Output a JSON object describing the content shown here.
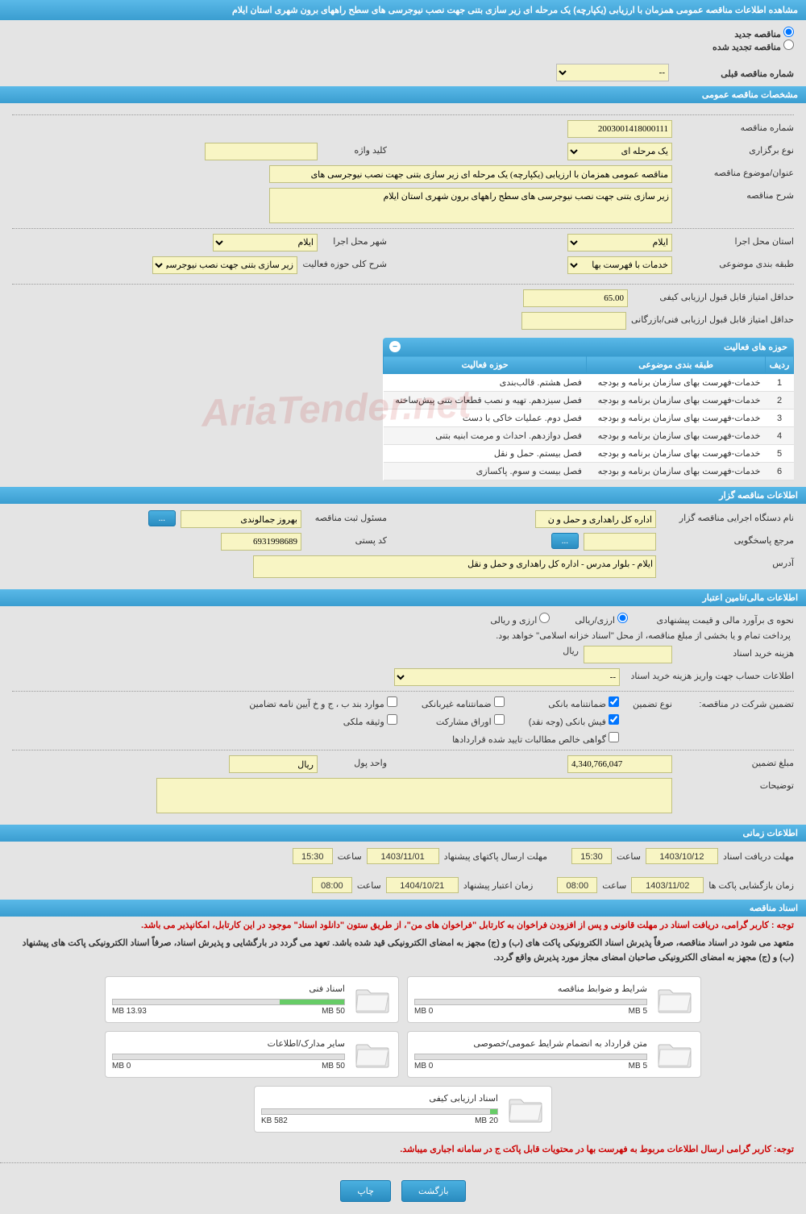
{
  "header_title": "مشاهده اطلاعات مناقصه عمومی همزمان با ارزیابی (یکپارچه) یک مرحله ای زیر سازی بتنی جهت نصب نیوجرسی های سطح راههای برون شهری استان ایلام",
  "radio_new": "مناقصه جدید",
  "radio_renewed": "مناقصه تجدید شده",
  "prev_number_label": "شماره مناقصه قبلی",
  "prev_number_placeholder": "--",
  "section_general": "مشخصات مناقصه عمومی",
  "section_issuer": "اطلاعات مناقصه گزار",
  "section_financial": "اطلاعات مالی/تامین اعتبار",
  "section_time": "اطلاعات زمانی",
  "section_docs": "اسناد مناقصه",
  "general": {
    "number_label": "شماره مناقصه",
    "number_value": "2003001418000111",
    "type_label": "نوع برگزاری",
    "type_value": "یک مرحله ای",
    "keyword_label": "کلید واژه",
    "keyword_value": "",
    "subject_label": "عنوان/موضوع مناقصه",
    "subject_value": "مناقصه عمومی همزمان با ارزیابی (یکپارچه) یک مرحله ای زیر سازی بتنی جهت نصب نیوجرسی های",
    "desc_label": "شرح مناقصه",
    "desc_value": "زیر سازی بتنی جهت نصب نیوجرسی های سطح راههای برون شهری استان ایلام",
    "province_label": "استان محل اجرا",
    "province_value": "ایلام",
    "city_label": "شهر محل اجرا",
    "city_value": "ایلام",
    "classification_label": "طبقه بندی موضوعی",
    "classification_value": "خدمات با فهرست بها",
    "activity_scope_label": "شرح کلی حوزه فعالیت",
    "activity_scope_value": "زیر سازی بتنی جهت نصب نیوجرسی های سطح",
    "min_quality_score_label": "حداقل امتیاز قابل قبول ارزیابی کیفی",
    "min_quality_score_value": "65.00",
    "min_tech_score_label": "حداقل امتیاز قابل قبول ارزیابی فنی/بازرگانی",
    "min_tech_score_value": ""
  },
  "activity_header": "حوزه های فعالیت",
  "activity_columns": {
    "row": "ردیف",
    "class": "طبقه بندی موضوعی",
    "scope": "حوزه فعالیت"
  },
  "activities": [
    {
      "n": "1",
      "cls": "خدمات-فهرست بهای سازمان برنامه و بودجه",
      "scope": "فصل هشتم. قالب‌بندی"
    },
    {
      "n": "2",
      "cls": "خدمات-فهرست بهای سازمان برنامه و بودجه",
      "scope": "فصل سیزدهم. تهیه و نصب قطعات بتنی پیش‌ساخته"
    },
    {
      "n": "3",
      "cls": "خدمات-فهرست بهای سازمان برنامه و بودجه",
      "scope": "فصل دوم. عملیات خاکی با دست"
    },
    {
      "n": "4",
      "cls": "خدمات-فهرست بهای سازمان برنامه و بودجه",
      "scope": "فصل دوازدهم. احداث و مرمت ابنیه بتنی"
    },
    {
      "n": "5",
      "cls": "خدمات-فهرست بهای سازمان برنامه و بودجه",
      "scope": "فصل بیستم. حمل و نقل"
    },
    {
      "n": "6",
      "cls": "خدمات-فهرست بهای سازمان برنامه و بودجه",
      "scope": "فصل بیست و سوم. پاکسازی"
    }
  ],
  "issuer": {
    "org_label": "نام دستگاه اجرایی مناقصه گزار",
    "org_value": "اداره کل راهداری و حمل و ن",
    "manager_label": "مسئول ثبت مناقصه",
    "manager_value": "بهروز جمالوندی",
    "ref_label": "مرجع پاسخگویی",
    "ref_value": "",
    "postal_label": "کد پستی",
    "postal_value": "6931998689",
    "address_label": "آدرس",
    "address_value": "ایلام - بلوار مدرس - اداره کل راهداری و حمل و نقل"
  },
  "financial": {
    "est_method_label": "نحوه ی برآورد مالی و قیمت پیشنهادی",
    "currency_rial": "ارزی/ریالی",
    "currency_both": "ارزی و ریالی",
    "payment_note": "پرداخت تمام و یا بخشی از مبلغ مناقصه، از محل \"اسناد خزانه اسلامی\" خواهد بود.",
    "doc_fee_label": "هزینه خرید اسناد",
    "doc_fee_unit": "ریال",
    "account_info_label": "اطلاعات حساب جهت واریز هزینه خرید اسناد",
    "account_info_placeholder": "--",
    "guarantee_label": "تضمین شرکت در مناقصه:",
    "guarantee_type_label": "نوع تضمین",
    "cb_bank_guarantee": "ضمانتنامه بانکی",
    "cb_nonbank_guarantee": "ضمانتنامه غیربانکی",
    "cb_regulation": "موارد بند ب ، ج و خ آیین نامه تضامین",
    "cb_cash": "فیش بانکی (وجه نقد)",
    "cb_participation": "اوراق مشارکت",
    "cb_property": "وثیقه ملکی",
    "cb_contracts": "گواهی خالص مطالبات تایید شده قراردادها",
    "amount_label": "مبلغ تضمین",
    "amount_value": "4,340,766,047",
    "unit_label": "واحد پول",
    "unit_value": "ریال",
    "remarks_label": "توضیحات"
  },
  "time": {
    "receive_deadline_label": "مهلت دریافت اسناد",
    "receive_deadline_date": "1403/10/12",
    "receive_deadline_time": "15:30",
    "send_deadline_label": "مهلت ارسال پاکتهای پیشنهاد",
    "send_deadline_date": "1403/11/01",
    "send_deadline_time": "15:30",
    "opening_label": "زمان بازگشایی پاکت ها",
    "opening_date": "1403/11/02",
    "opening_time": "08:00",
    "validity_label": "زمان اعتبار پیشنهاد",
    "validity_date": "1404/10/21",
    "validity_time": "08:00",
    "hour_label": "ساعت"
  },
  "docs_notes": {
    "red1": "توجه : کاربر گرامی، دریافت اسناد در مهلت قانونی و پس از افزودن فراخوان به کارتابل \"فراخوان های من\"، از طریق ستون \"دانلود اسناد\" موجود در این کارتابل، امکانپذیر می باشد.",
    "black": "متعهد می شود در اسناد مناقصه، صرفاً پذیرش اسناد الکترونیکی پاکت های (ب) و (ج) مجهز به امضای الکترونیکی قید شده باشد. تعهد می گردد در بارگشایی و پذیرش اسناد، صرفاً اسناد الکترونیکی پاکت های پیشنهاد (ب) و (ج) مجهز به امضای الکترونیکی صاحبان امضای مجاز مورد پذیرش واقع گردد.",
    "red2": "توجه: کاربر گرامی ارسال اطلاعات مربوط به فهرست بها در محتویات قابل پاکت ج در سامانه اجباری میباشد."
  },
  "doc_cards": [
    {
      "title": "شرایط و ضوابط مناقصه",
      "used": "0 MB",
      "max": "5 MB",
      "pct": 0
    },
    {
      "title": "اسناد فنی",
      "used": "13.93 MB",
      "max": "50 MB",
      "pct": 28
    },
    {
      "title": "متن قرارداد به انضمام شرایط عمومی/خصوصی",
      "used": "0 MB",
      "max": "5 MB",
      "pct": 0
    },
    {
      "title": "سایر مدارک/اطلاعات",
      "used": "0 MB",
      "max": "50 MB",
      "pct": 0
    },
    {
      "title": "اسناد ارزیابی کیفی",
      "used": "582 KB",
      "max": "20 MB",
      "pct": 3
    }
  ],
  "buttons": {
    "back": "بازگشت",
    "print": "چاپ",
    "ellipsis": "..."
  },
  "colors": {
    "header_gradient_top": "#5ab9e8",
    "header_gradient_bottom": "#3a9dd0",
    "yellow_bg": "#f8f5c4",
    "page_bg": "#e4e4e4",
    "red_text": "#cc0000",
    "progress_green": "#66cc66"
  },
  "watermark": "AriaTender.net"
}
